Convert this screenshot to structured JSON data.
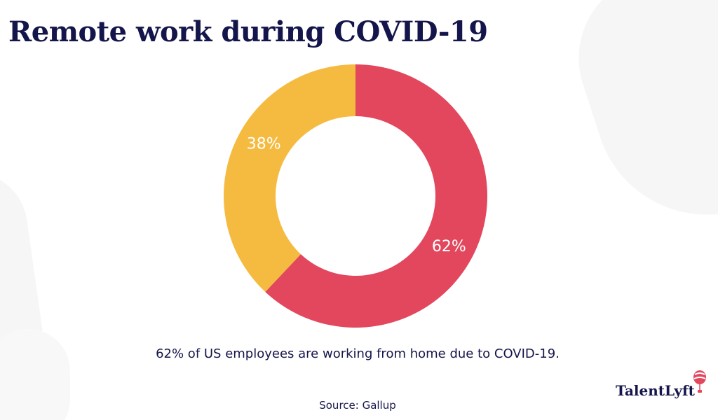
{
  "title": "Remote work during COVID-19",
  "caption": "62% of US employees are working from home due to COVID-19.",
  "source": "Source: Gallup",
  "logo": {
    "text": "TalentLyft",
    "icon": "balloon-icon"
  },
  "colors": {
    "title": "#14154a",
    "home": "#e2475d",
    "other": "#f5bb41",
    "background": "#ffffff"
  },
  "chart_data": {
    "type": "pie",
    "donut": true,
    "title": "Remote work during COVID-19",
    "slices": [
      {
        "label": "62%",
        "value": 62,
        "color": "#e2475d"
      },
      {
        "label": "38%",
        "value": 38,
        "color": "#f5bb41"
      }
    ]
  }
}
